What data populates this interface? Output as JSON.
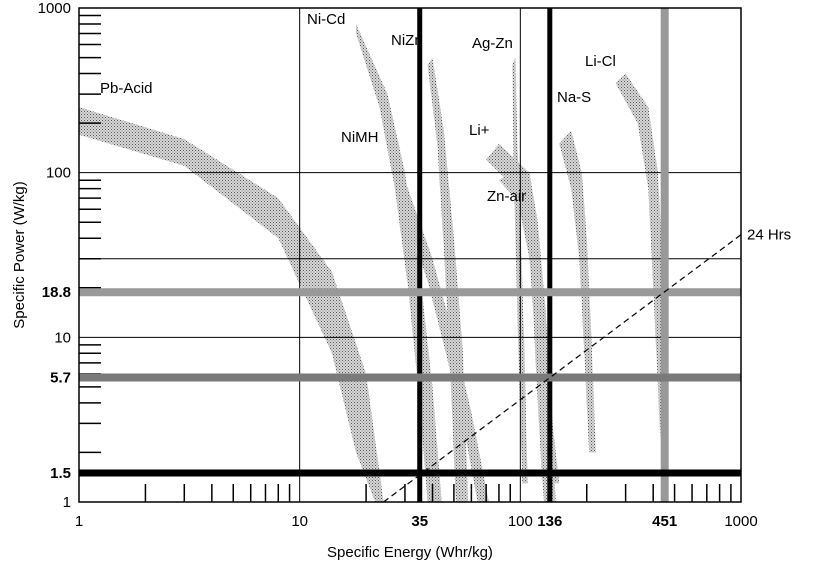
{
  "chart_data": {
    "type": "area",
    "xlabel": "Specific Energy (Whr/kg)",
    "ylabel": "Specific Power (W/kg)",
    "x_scale": "log",
    "y_scale": "log",
    "xlim": [
      1,
      1000
    ],
    "ylim": [
      1,
      1000
    ],
    "grid": true,
    "x_tick_labels": [
      {
        "value": 1,
        "label": "1",
        "bold": false
      },
      {
        "value": 10,
        "label": "10",
        "bold": false
      },
      {
        "value": 35,
        "label": "35",
        "bold": true
      },
      {
        "value": 100,
        "label": "100",
        "bold": false
      },
      {
        "value": 136,
        "label": "136",
        "bold": true
      },
      {
        "value": 451,
        "label": "451",
        "bold": true
      },
      {
        "value": 1000,
        "label": "1000",
        "bold": false
      }
    ],
    "y_tick_labels": [
      {
        "value": 1,
        "label": "1",
        "bold": false
      },
      {
        "value": 1.5,
        "label": "1.5",
        "bold": true
      },
      {
        "value": 5.7,
        "label": "5.7",
        "bold": true
      },
      {
        "value": 10,
        "label": "10",
        "bold": false
      },
      {
        "value": 18.8,
        "label": "18.8",
        "bold": true
      },
      {
        "value": 100,
        "label": "100",
        "bold": false
      },
      {
        "value": 1000,
        "label": "1000",
        "bold": false
      }
    ],
    "reference_lines": [
      {
        "axis": "x",
        "value": 35,
        "color": "#000000"
      },
      {
        "axis": "x",
        "value": 136,
        "color": "#000000"
      },
      {
        "axis": "x",
        "value": 451,
        "color": "#999999"
      },
      {
        "axis": "y",
        "value": 1.5,
        "color": "#000000"
      },
      {
        "axis": "y",
        "value": 5.7,
        "color": "#7a7a7a"
      },
      {
        "axis": "y",
        "value": 18.8,
        "color": "#999999"
      }
    ],
    "series": [
      {
        "name": "Pb-Acid",
        "upper": [
          [
            1,
            250
          ],
          [
            3,
            160
          ],
          [
            8,
            70
          ],
          [
            14,
            25
          ],
          [
            20,
            6
          ],
          [
            24,
            1
          ]
        ],
        "lower": [
          [
            1,
            170
          ],
          [
            3,
            110
          ],
          [
            8,
            40
          ],
          [
            14,
            8
          ],
          [
            18,
            2
          ],
          [
            22,
            1
          ]
        ]
      },
      {
        "name": "NiMH",
        "upper": [
          [
            30,
            90
          ],
          [
            40,
            30
          ],
          [
            50,
            10
          ],
          [
            60,
            3.5
          ],
          [
            72,
            1
          ]
        ],
        "lower": [
          [
            30,
            55
          ],
          [
            38,
            22
          ],
          [
            46,
            8
          ],
          [
            55,
            3
          ],
          [
            64,
            1
          ]
        ]
      },
      {
        "name": "Ni-Cd",
        "upper": [
          [
            18,
            800
          ],
          [
            25,
            300
          ],
          [
            30,
            100
          ],
          [
            35,
            25
          ],
          [
            40,
            5
          ],
          [
            44,
            1
          ]
        ],
        "lower": [
          [
            18,
            700
          ],
          [
            23,
            250
          ],
          [
            27,
            80
          ],
          [
            31,
            20
          ],
          [
            35,
            4
          ],
          [
            38,
            1
          ]
        ]
      },
      {
        "name": "NiZn",
        "upper": [
          [
            40,
            500
          ],
          [
            45,
            180
          ],
          [
            50,
            40
          ],
          [
            55,
            8
          ],
          [
            58,
            1
          ]
        ],
        "lower": [
          [
            38,
            450
          ],
          [
            42,
            150
          ],
          [
            45,
            35
          ],
          [
            48,
            7
          ],
          [
            51,
            1
          ]
        ]
      },
      {
        "name": "Ag-Zn",
        "upper": [
          [
            95,
            500
          ],
          [
            97,
            150
          ],
          [
            100,
            50
          ],
          [
            104,
            10
          ],
          [
            108,
            1.3
          ]
        ],
        "lower": [
          [
            92,
            450
          ],
          [
            93,
            130
          ],
          [
            95,
            40
          ],
          [
            98,
            8
          ],
          [
            102,
            1.3
          ]
        ]
      },
      {
        "name": "Li+",
        "upper": [
          [
            80,
            150
          ],
          [
            110,
            100
          ],
          [
            120,
            50
          ],
          [
            130,
            15
          ],
          [
            140,
            3
          ],
          [
            150,
            1.3
          ]
        ],
        "lower": [
          [
            70,
            120
          ],
          [
            95,
            80
          ],
          [
            110,
            30
          ],
          [
            118,
            8
          ],
          [
            124,
            2
          ],
          [
            130,
            1.3
          ]
        ]
      },
      {
        "name": "Zn-air",
        "upper": [
          [
            90,
            100
          ],
          [
            110,
            80
          ],
          [
            120,
            40
          ],
          [
            130,
            10
          ],
          [
            140,
            2
          ],
          [
            145,
            1
          ]
        ],
        "lower": [
          [
            80,
            90
          ],
          [
            105,
            60
          ],
          [
            112,
            25
          ],
          [
            118,
            6
          ],
          [
            125,
            1.5
          ],
          [
            128,
            1
          ]
        ]
      },
      {
        "name": "Na-S",
        "upper": [
          [
            170,
            180
          ],
          [
            190,
            100
          ],
          [
            200,
            40
          ],
          [
            210,
            10
          ],
          [
            220,
            2
          ]
        ],
        "lower": [
          [
            150,
            150
          ],
          [
            170,
            80
          ],
          [
            185,
            30
          ],
          [
            195,
            8
          ],
          [
            205,
            2
          ]
        ]
      },
      {
        "name": "Li-Cl",
        "upper": [
          [
            300,
            400
          ],
          [
            380,
            250
          ],
          [
            420,
            100
          ],
          [
            440,
            30
          ],
          [
            450,
            10
          ]
        ],
        "lower": [
          [
            270,
            350
          ],
          [
            340,
            200
          ],
          [
            380,
            80
          ],
          [
            400,
            20
          ],
          [
            420,
            5
          ],
          [
            430,
            2.5
          ]
        ]
      }
    ],
    "annotation": {
      "text": "24 Hrs",
      "line": [
        [
          24,
          1
        ],
        [
          1000,
          42
        ]
      ]
    }
  }
}
